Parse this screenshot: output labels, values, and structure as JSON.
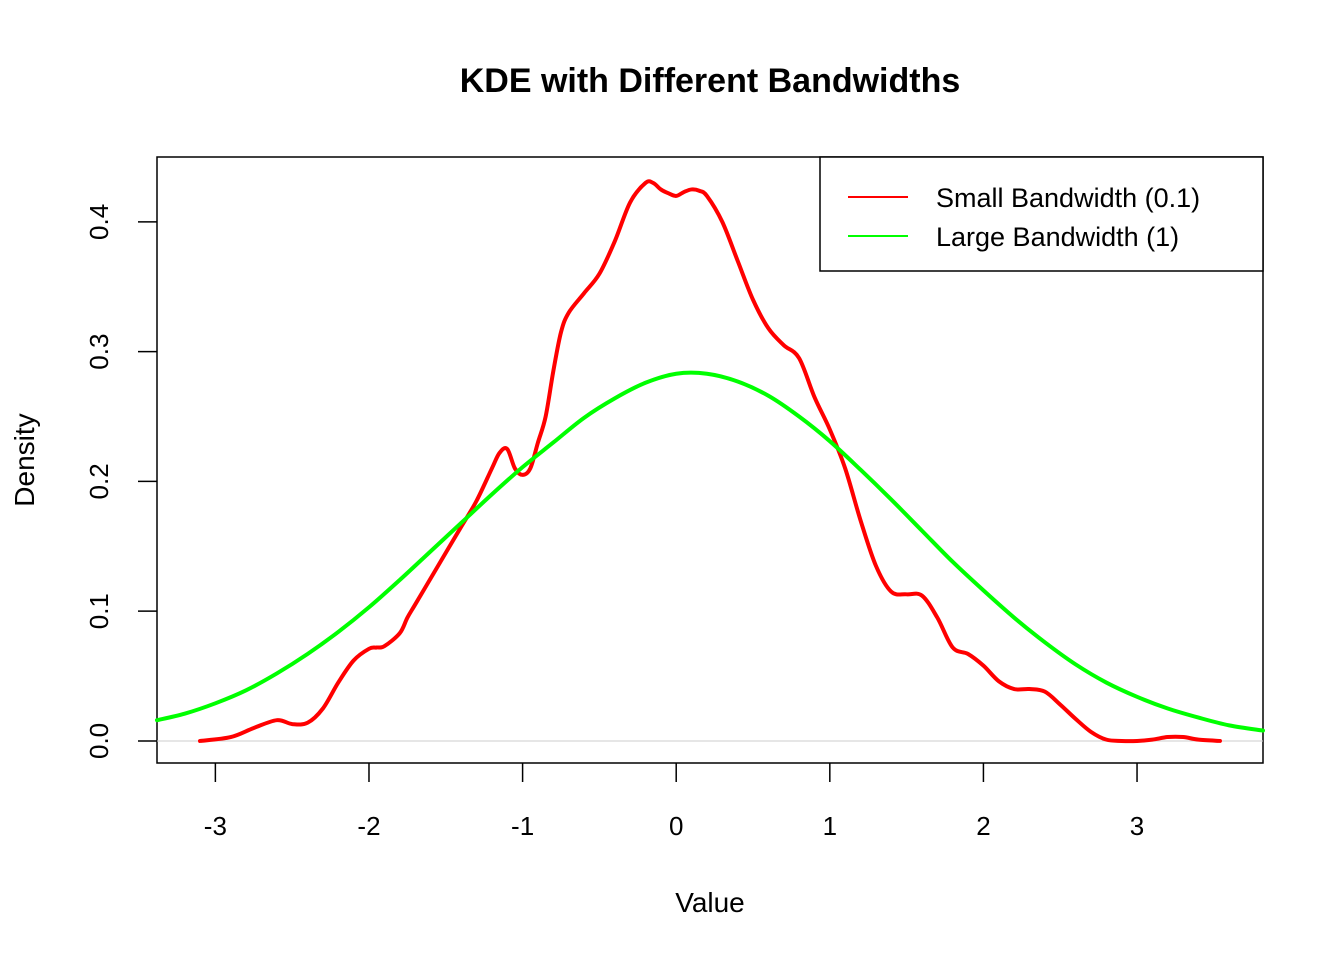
{
  "chart_data": {
    "type": "line",
    "title": "KDE with Different Bandwidths",
    "xlabel": "Value",
    "ylabel": "Density",
    "xlim": [
      -3.38,
      3.82
    ],
    "ylim": [
      -0.017,
      0.45
    ],
    "x_ticks": [
      -3,
      -2,
      -1,
      0,
      1,
      2,
      3
    ],
    "x_tick_labels": [
      "-3",
      "-2",
      "-1",
      "0",
      "1",
      "2",
      "3"
    ],
    "y_ticks": [
      0.0,
      0.1,
      0.2,
      0.3,
      0.4
    ],
    "y_tick_labels": [
      "0.0",
      "0.1",
      "0.2",
      "0.3",
      "0.4"
    ],
    "grid": false,
    "baseline": 0,
    "legend": {
      "position": "top-right"
    },
    "series": [
      {
        "name": "Small Bandwidth (0.1)",
        "color": "#ff0000",
        "x": [
          -3.1,
          -2.9,
          -2.75,
          -2.6,
          -2.5,
          -2.4,
          -2.3,
          -2.2,
          -2.1,
          -2.0,
          -1.95,
          -1.9,
          -1.8,
          -1.75,
          -1.7,
          -1.6,
          -1.5,
          -1.4,
          -1.3,
          -1.2,
          -1.15,
          -1.1,
          -1.05,
          -1.0,
          -0.95,
          -0.9,
          -0.85,
          -0.8,
          -0.75,
          -0.7,
          -0.6,
          -0.5,
          -0.4,
          -0.3,
          -0.2,
          -0.15,
          -0.1,
          -0.05,
          0.0,
          0.05,
          0.1,
          0.15,
          0.2,
          0.3,
          0.4,
          0.5,
          0.6,
          0.7,
          0.8,
          0.9,
          1.0,
          1.1,
          1.2,
          1.3,
          1.4,
          1.5,
          1.6,
          1.7,
          1.8,
          1.9,
          2.0,
          2.1,
          2.2,
          2.3,
          2.4,
          2.5,
          2.6,
          2.7,
          2.8,
          2.9,
          3.0,
          3.1,
          3.2,
          3.3,
          3.4,
          3.54
        ],
        "y": [
          0.0,
          0.003,
          0.01,
          0.016,
          0.013,
          0.014,
          0.025,
          0.045,
          0.062,
          0.071,
          0.072,
          0.073,
          0.083,
          0.095,
          0.105,
          0.125,
          0.145,
          0.165,
          0.185,
          0.21,
          0.222,
          0.225,
          0.21,
          0.205,
          0.21,
          0.23,
          0.25,
          0.285,
          0.315,
          0.33,
          0.345,
          0.36,
          0.385,
          0.415,
          0.43,
          0.43,
          0.425,
          0.422,
          0.42,
          0.423,
          0.425,
          0.424,
          0.42,
          0.4,
          0.37,
          0.34,
          0.318,
          0.305,
          0.295,
          0.265,
          0.24,
          0.21,
          0.17,
          0.135,
          0.115,
          0.113,
          0.112,
          0.095,
          0.072,
          0.067,
          0.058,
          0.046,
          0.04,
          0.04,
          0.038,
          0.028,
          0.017,
          0.007,
          0.001,
          0.0,
          0.0,
          0.001,
          0.003,
          0.003,
          0.001,
          0.0
        ]
      },
      {
        "name": "Large Bandwidth (1)",
        "color": "#00ff00",
        "x": [
          -3.38,
          -3.2,
          -3.0,
          -2.8,
          -2.6,
          -2.4,
          -2.2,
          -2.0,
          -1.8,
          -1.6,
          -1.4,
          -1.2,
          -1.0,
          -0.8,
          -0.6,
          -0.4,
          -0.2,
          0.0,
          0.2,
          0.4,
          0.6,
          0.8,
          1.0,
          1.2,
          1.4,
          1.6,
          1.8,
          2.0,
          2.2,
          2.4,
          2.6,
          2.8,
          3.0,
          3.2,
          3.4,
          3.6,
          3.82
        ],
        "y": [
          0.016,
          0.021,
          0.029,
          0.039,
          0.052,
          0.067,
          0.084,
          0.103,
          0.124,
          0.146,
          0.168,
          0.19,
          0.211,
          0.23,
          0.249,
          0.264,
          0.276,
          0.283,
          0.283,
          0.277,
          0.266,
          0.25,
          0.231,
          0.209,
          0.186,
          0.162,
          0.138,
          0.116,
          0.095,
          0.076,
          0.059,
          0.045,
          0.034,
          0.025,
          0.018,
          0.012,
          0.008
        ]
      }
    ]
  }
}
